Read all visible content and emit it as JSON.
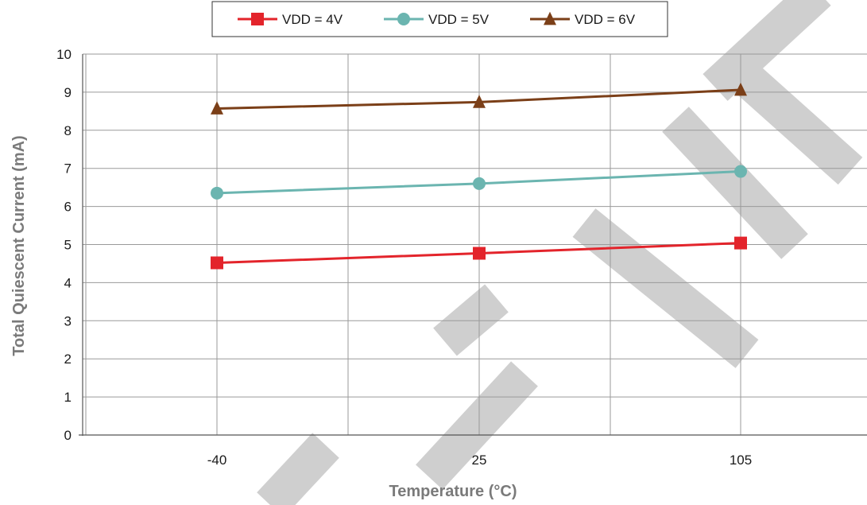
{
  "chart_data": {
    "type": "line",
    "title": "",
    "xlabel": "Temperature (°C)",
    "ylabel": "Total Quiescent Current (mA)",
    "categories": [
      "-40",
      "25",
      "105"
    ],
    "ylim": [
      0,
      10
    ],
    "yticks": [
      0,
      1,
      2,
      3,
      4,
      5,
      6,
      7,
      8,
      9,
      10
    ],
    "grid": true,
    "legend_position": "top",
    "series": [
      {
        "name": "VDD = 4V",
        "values": [
          4.52,
          4.77,
          5.04
        ],
        "color": "#e3242b",
        "marker": "square"
      },
      {
        "name": "VDD = 5V",
        "values": [
          6.35,
          6.6,
          6.92
        ],
        "color": "#6bb5b0",
        "marker": "circle"
      },
      {
        "name": "VDD = 6V",
        "values": [
          8.57,
          8.74,
          9.06
        ],
        "color": "#7b3f18",
        "marker": "triangle"
      }
    ],
    "watermark_text": "OFFICE"
  }
}
